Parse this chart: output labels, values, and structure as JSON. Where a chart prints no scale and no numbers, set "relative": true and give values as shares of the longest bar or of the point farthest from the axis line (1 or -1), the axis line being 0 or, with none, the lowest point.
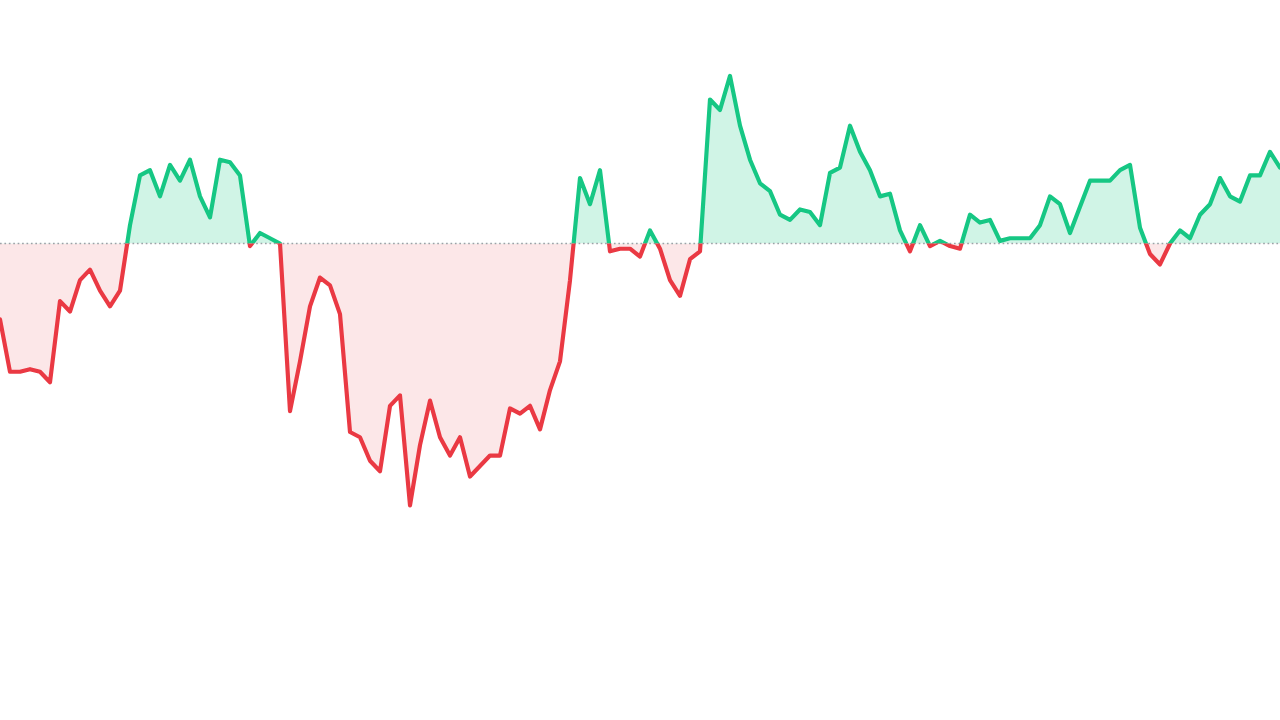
{
  "chart_data": {
    "type": "area",
    "relative": true,
    "categories": [
      null,
      null,
      null,
      null,
      null,
      null,
      null,
      null,
      null,
      null,
      null,
      null,
      null,
      null,
      null,
      null,
      null,
      null,
      null,
      null,
      null,
      null,
      null,
      null,
      null,
      null,
      null,
      null,
      null,
      null,
      null,
      null,
      null,
      null,
      null,
      null,
      null,
      null,
      null,
      null,
      null,
      null,
      null,
      null,
      null,
      null,
      null,
      null,
      null,
      null,
      null,
      null,
      null,
      null,
      null,
      null,
      null,
      null,
      null,
      null,
      null,
      null,
      null,
      null,
      null,
      null,
      null,
      null,
      null,
      null,
      null,
      null,
      null,
      null,
      null,
      null,
      null,
      null,
      null,
      null,
      null,
      null,
      null,
      null,
      null,
      null,
      null,
      null,
      null,
      null,
      null,
      null,
      null,
      null,
      null,
      null,
      null,
      null,
      null,
      null,
      null,
      null,
      null,
      null,
      null,
      null,
      null,
      null,
      null,
      null,
      null,
      null,
      null,
      null,
      null,
      null,
      null,
      null,
      null,
      null,
      null,
      null,
      null,
      null,
      null,
      null,
      null,
      null,
      null
    ],
    "series": [
      {
        "color": "#16c784",
        "values": [
          -0.29,
          -0.49,
          -0.49,
          -0.48,
          -0.49,
          -0.53,
          -0.22,
          -0.26,
          -0.14,
          -0.1,
          -0.18,
          -0.24,
          -0.18,
          0.07,
          0.26,
          0.28,
          0.18,
          0.3,
          0.24,
          0.32,
          0.18,
          0.1,
          0.32,
          0.31,
          0.26,
          -0.01,
          0.04,
          0.02,
          0,
          -0.64,
          -0.45,
          -0.24,
          -0.13,
          -0.16,
          -0.27,
          -0.72,
          -0.74,
          -0.83,
          -0.87,
          -0.62,
          -0.58,
          -1,
          -0.77,
          -0.6,
          -0.74,
          -0.81,
          -0.74,
          -0.89,
          -0.85,
          -0.81,
          -0.81,
          -0.63,
          -0.65,
          -0.62,
          -0.71,
          -0.56,
          -0.45,
          -0.14,
          0.25,
          0.15,
          0.28,
          -0.03,
          -0.02,
          -0.02,
          -0.05,
          0.05,
          -0.02,
          -0.14,
          -0.2,
          -0.06,
          -0.03,
          0.55,
          0.51,
          0.64,
          0.45,
          0.32,
          0.23,
          0.2,
          0.11,
          0.09,
          0.13,
          0.12,
          0.07,
          0.27,
          0.29,
          0.45,
          0.35,
          0.28,
          0.18,
          0.19,
          0.05,
          -0.03,
          0.07,
          -0.01,
          0.01,
          -0.01,
          -0.02,
          0.11,
          0.08,
          0.09,
          0.01,
          0.02,
          0.02,
          0.02,
          0.07,
          0.18,
          0.15,
          0.04,
          0.14,
          0.24,
          0.24,
          0.24,
          0.28,
          0.3,
          0.06,
          -0.04,
          -0.08,
          0,
          0.05,
          0.02,
          0.11,
          0.15,
          0.25,
          0.18,
          0.16,
          0.26,
          0.26,
          0.35,
          0.29
        ],
        "colors": [
          "#ea3943",
          "#ea3943",
          "#ea3943",
          "#ea3943",
          "#ea3943",
          "#ea3943",
          "#ea3943",
          "#ea3943",
          "#ea3943",
          "#ea3943",
          "#ea3943",
          "#ea3943",
          "#ea3943",
          "#16c784",
          "#16c784",
          "#16c784",
          "#16c784",
          "#16c784",
          "#16c784",
          "#16c784",
          "#16c784",
          "#16c784",
          "#16c784",
          "#16c784",
          "#16c784",
          "#ea3943",
          "#16c784",
          "#16c784",
          "#16c784",
          "#ea3943",
          "#ea3943",
          "#ea3943",
          "#ea3943",
          "#ea3943",
          "#ea3943",
          "#ea3943",
          "#ea3943",
          "#ea3943",
          "#ea3943",
          "#ea3943",
          "#ea3943",
          "#ea3943",
          "#ea3943",
          "#ea3943",
          "#ea3943",
          "#ea3943",
          "#ea3943",
          "#ea3943",
          "#ea3943",
          "#ea3943",
          "#ea3943",
          "#ea3943",
          "#ea3943",
          "#ea3943",
          "#ea3943",
          "#ea3943",
          "#ea3943",
          "#ea3943",
          "#16c784",
          "#16c784",
          "#16c784",
          "#ea3943",
          "#ea3943",
          "#ea3943",
          "#ea3943",
          "#16c784",
          "#ea3943",
          "#ea3943",
          "#ea3943",
          "#ea3943",
          "#ea3943",
          "#16c784",
          "#16c784",
          "#16c784",
          "#16c784",
          "#16c784",
          "#16c784",
          "#16c784",
          "#16c784",
          "#16c784",
          "#16c784",
          "#16c784",
          "#16c784",
          "#16c784",
          "#16c784",
          "#16c784",
          "#16c784",
          "#16c784",
          "#16c784",
          "#16c784",
          "#16c784",
          "#ea3943",
          "#16c784",
          "#ea3943",
          "#16c784",
          "#ea3943",
          "#ea3943",
          "#16c784",
          "#16c784",
          "#16c784",
          "#16c784",
          "#16c784",
          "#16c784",
          "#16c784",
          "#16c784",
          "#16c784",
          "#16c784",
          "#16c784",
          "#16c784",
          "#16c784",
          "#16c784",
          "#16c784",
          "#16c784",
          "#16c784",
          "#16c784",
          "#ea3943",
          "#ea3943",
          "#16c784",
          "#16c784",
          "#16c784",
          "#16c784",
          "#16c784",
          "#16c784",
          "#16c784",
          "#16c784",
          "#16c784",
          "#16c784",
          "#16c784",
          "#16c784"
        ]
      }
    ],
    "ref_lines": [
      {
        "axis": "y",
        "value": 0,
        "color": "#a0a4ad",
        "line_style": "dotted"
      }
    ]
  }
}
